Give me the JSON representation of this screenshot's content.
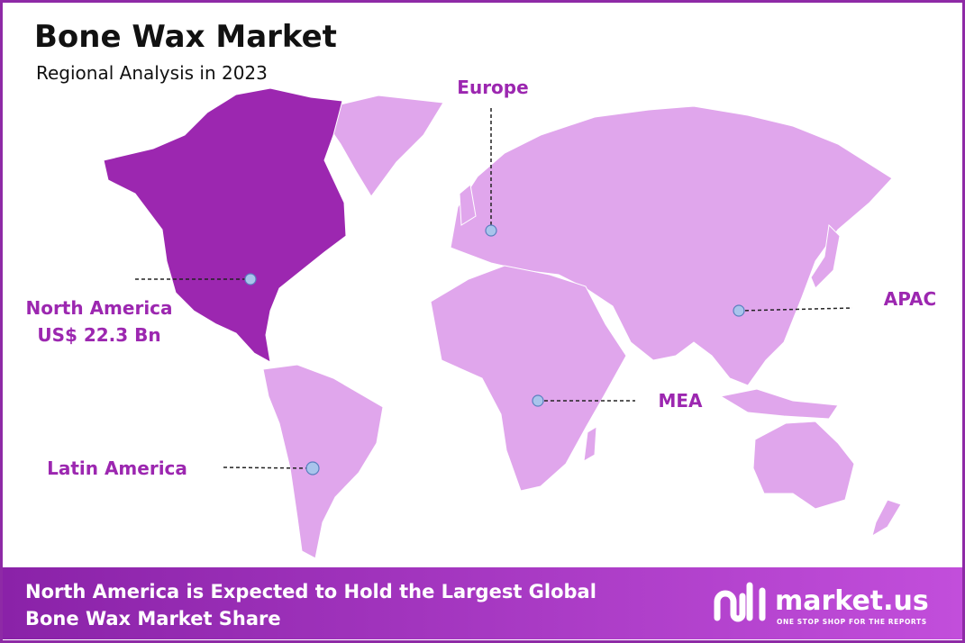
{
  "header": {
    "title": "Bone Wax Market",
    "subtitle": "Regional Analysis in 2023"
  },
  "regions": [
    {
      "name": "North America",
      "value": "US$ 22.3 Bn"
    },
    {
      "name": "Europe"
    },
    {
      "name": "APAC"
    },
    {
      "name": "MEA"
    },
    {
      "name": "Latin America"
    }
  ],
  "footer": {
    "lines": [
      "North America is Expected to Hold the Largest Global",
      "Bone Wax Market Share"
    ]
  },
  "logo": {
    "name": "market.us",
    "tagline": "ONE STOP SHOP FOR THE REPORTS"
  }
}
